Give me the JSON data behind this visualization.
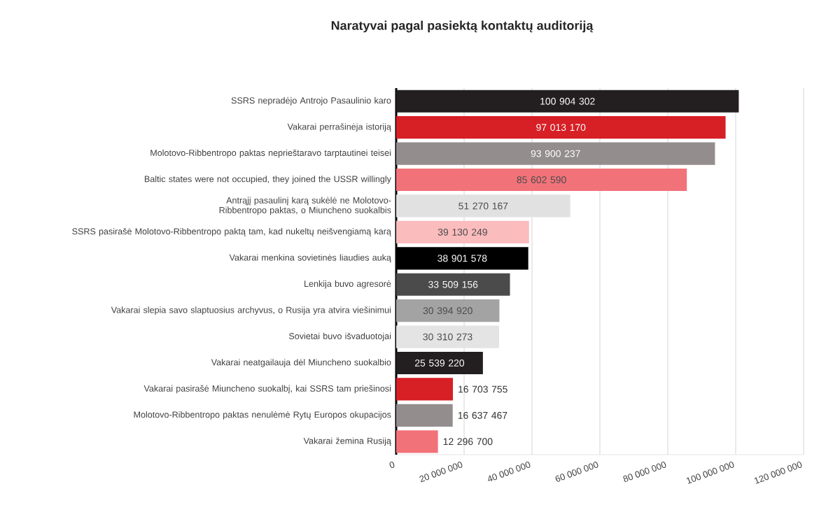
{
  "chart_data": {
    "type": "bar",
    "orientation": "horizontal",
    "title": "Naratyvai pagal pasiektą kontaktų auditoriją",
    "categories": [
      "SSRS nepradėjo Antrojo Pasaulinio karo",
      "Vakarai perrašinėja istoriją",
      "Molotovo-Ribbentropo paktas neprieštaravo tarptautinei teisei",
      "Baltic states were not occupied, they joined the USSR willingly",
      "Antrąjį pasaulinį karą sukėlė ne Molotovo-Ribbentropo paktas, o Miuncheno suokalbis",
      "SSRS pasirašė Molotovo-Ribbentropo paktą tam, kad nukeltų neišvengiamą karą",
      "Vakarai menkina sovietinės liaudies auką",
      "Lenkija buvo agresorė",
      "Vakarai slepia savo slaptuosius archyvus, o Rusija yra atvira viešinimui",
      "Sovietai buvo išvaduotojai",
      "Vakarai neatgailauja dėl Miuncheno suokalbio",
      "Vakarai pasirašė Miuncheno suokalbį, kai SSRS tam priešinosi",
      "Molotovo-Ribbentropo paktas nenulėmė Rytų Europos okupacijos",
      "Vakarai žemina Rusiją"
    ],
    "values": [
      100904302,
      97013170,
      93900237,
      85602590,
      51270167,
      39130249,
      38901578,
      33509156,
      30394920,
      30310273,
      25539220,
      16703755,
      16637467,
      12296700
    ],
    "colors": [
      "#231f20",
      "#d71f26",
      "#948d8e",
      "#f2727a",
      "#e1e1e2",
      "#fbbcbe",
      "#000000",
      "#4b4b4b",
      "#a3a3a3",
      "#e4e4e4",
      "#231f20",
      "#d71f26",
      "#948d8e",
      "#f2727a"
    ],
    "xlim": [
      0,
      120000000
    ],
    "xticks": [
      0,
      {
        "value": 20000000,
        "label": "20 000 000"
      },
      {
        "value": 40000000,
        "label": "40 000 000"
      },
      {
        "value": 60000000,
        "label": "60 000 000"
      },
      {
        "value": 80000000,
        "label": "80 000 000"
      },
      {
        "value": 100000000,
        "label": "100 000 000"
      },
      {
        "value": 120000000,
        "label": "120 000 000"
      }
    ],
    "grid": "x",
    "data_labels": true
  }
}
